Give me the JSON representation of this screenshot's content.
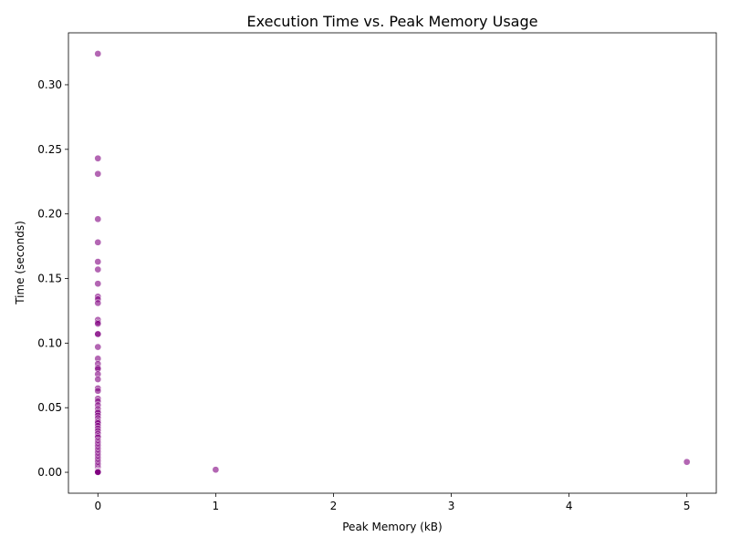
{
  "chart_data": {
    "type": "scatter",
    "title": "Execution Time vs. Peak Memory Usage",
    "xlabel": "Peak Memory (kB)",
    "ylabel": "Time (seconds)",
    "xlim": [
      -0.25,
      5.25
    ],
    "ylim": [
      -0.0162,
      0.3402
    ],
    "xticks": [
      0,
      1,
      2,
      3,
      4,
      5
    ],
    "xtick_labels": [
      "0",
      "1",
      "2",
      "3",
      "4",
      "5"
    ],
    "yticks": [
      0.0,
      0.05,
      0.1,
      0.15,
      0.2,
      0.25,
      0.3
    ],
    "ytick_labels": [
      "0.00",
      "0.05",
      "0.10",
      "0.15",
      "0.20",
      "0.25",
      "0.30"
    ],
    "grid": false,
    "legend": "none",
    "marker_color": "#800080",
    "marker_edge_color": "#ffffff",
    "marker_alpha": 0.6,
    "series": [
      {
        "x": [
          0,
          0,
          0,
          0,
          0,
          0,
          0,
          0,
          0,
          0,
          0,
          0,
          0,
          0,
          0,
          0,
          0,
          0,
          0,
          0,
          0,
          0,
          0,
          0,
          0,
          0,
          0,
          0,
          0,
          0,
          0,
          0,
          0,
          0,
          0,
          0,
          0,
          0,
          0,
          0,
          0,
          0,
          0,
          0,
          0,
          0,
          0,
          0,
          0,
          0,
          0,
          0,
          0,
          0,
          0,
          0,
          0,
          0,
          0,
          0,
          0,
          0,
          0,
          0,
          0,
          0,
          0,
          0,
          0,
          0,
          0,
          0,
          1,
          5
        ],
        "y": [
          0.324,
          0.243,
          0.231,
          0.196,
          0.178,
          0.163,
          0.157,
          0.146,
          0.136,
          0.134,
          0.131,
          0.118,
          0.116,
          0.115,
          0.107,
          0.107,
          0.097,
          0.088,
          0.084,
          0.081,
          0.08,
          0.076,
          0.072,
          0.065,
          0.063,
          0.057,
          0.055,
          0.052,
          0.049,
          0.047,
          0.046,
          0.044,
          0.042,
          0.04,
          0.039,
          0.038,
          0.036,
          0.034,
          0.032,
          0.03,
          0.028,
          0.027,
          0.025,
          0.024,
          0.023,
          0.022,
          0.021,
          0.02,
          0.019,
          0.018,
          0.017,
          0.016,
          0.015,
          0.014,
          0.013,
          0.012,
          0.011,
          0.01,
          0.009,
          0.008,
          0.007,
          0.006,
          0.005,
          0.004,
          0.003,
          0.002,
          0.0015,
          0.001,
          0.0005,
          0.0003,
          0.0002,
          0.0001,
          0.002,
          0.008
        ]
      }
    ]
  }
}
